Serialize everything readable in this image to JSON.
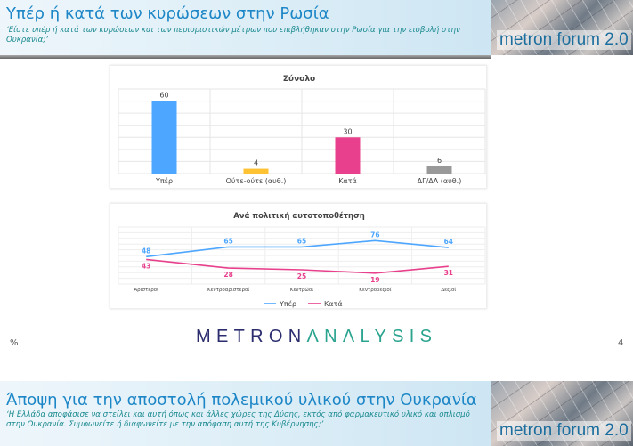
{
  "slide1": {
    "title": "Υπέρ ή κατά των κυρώσεων στην Ρωσία",
    "subtitle": "‘Είστε υπέρ ή κατά των κυρώσεων και των περιοριστικών μέτρων που επιβλήθηκαν στην Ρωσία για την εισβολή στην Ουκρανία;’",
    "brand": "metron forum 2.0"
  },
  "footer": {
    "unit": "%",
    "logo_part1": "METRON",
    "logo_part2": "ΛNΛLYSIS",
    "page": "4"
  },
  "slide2": {
    "title": "Άποψη για την αποστολή πολεμικού υλικού στην Ουκρανία",
    "subtitle": "‘Η Ελλάδα αποφάσισε να στείλει και αυτή όπως και άλλες χώρες της Δύσης, εκτός από φαρμακευτικό υλικό και οπλισμό στην Ουκρανία. Συμφωνείτε ή διαφωνείτε με την απόφαση αυτή της Κυβέρνησης;’",
    "brand": "metron forum 2.0"
  },
  "chart_data": [
    {
      "type": "bar",
      "title": "Σύνολο",
      "categories": [
        "Υπέρ",
        "Ούτε-ούτε (αυθ.)",
        "Κατά",
        "ΔΓ/ΔΑ (αυθ.)"
      ],
      "values": [
        60,
        4,
        30,
        6
      ],
      "colors": [
        "#4da6ff",
        "#ffc233",
        "#e8408c",
        "#999999"
      ],
      "ylim": [
        0,
        70
      ],
      "grid": true
    },
    {
      "type": "line",
      "title": "Ανά πολιτική αυτοτοποθέτηση",
      "categories": [
        "Αριστεροί",
        "Κεντροαριστεροί",
        "Κεντρώοι",
        "Κεντροδεξιοί",
        "Δεξιοί"
      ],
      "series": [
        {
          "name": "Υπέρ",
          "values": [
            48,
            65,
            65,
            76,
            64
          ],
          "color": "#4da6ff"
        },
        {
          "name": "Κατά",
          "values": [
            43,
            28,
            25,
            19,
            31
          ],
          "color": "#e8408c"
        }
      ],
      "ylim": [
        0,
        100
      ],
      "legend": "bottom",
      "grid": true
    }
  ]
}
